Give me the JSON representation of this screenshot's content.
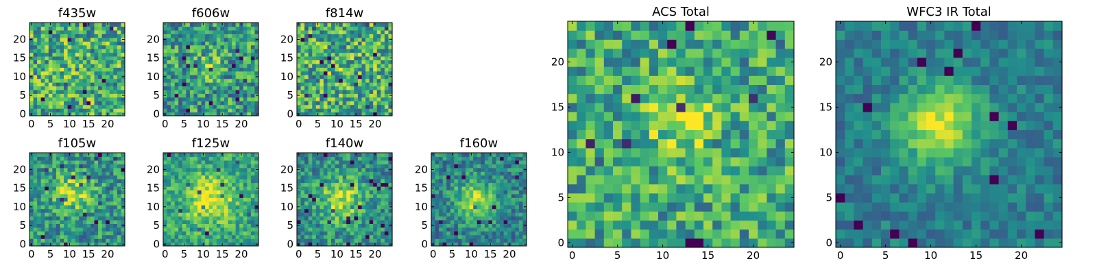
{
  "figure": {
    "colormap": [
      "#440154",
      "#3b528b",
      "#21918c",
      "#5ec962",
      "#fde725"
    ]
  },
  "chart_data": [
    {
      "type": "heatmap",
      "title": "f435w",
      "grid_size": 25,
      "xticks": [
        "0",
        "5",
        "10",
        "15",
        "20"
      ],
      "yticks": [
        "0",
        "5",
        "10",
        "15",
        "20"
      ],
      "seed": 11,
      "center": [
        10,
        13
      ],
      "peak": 0.05,
      "spread": 3.0,
      "noise": 0.55,
      "base": 0.62
    },
    {
      "type": "heatmap",
      "title": "f606w",
      "grid_size": 25,
      "xticks": [
        "0",
        "5",
        "10",
        "15",
        "20"
      ],
      "yticks": [
        "0",
        "5",
        "10",
        "15",
        "20"
      ],
      "seed": 23,
      "center": [
        11,
        13
      ],
      "peak": 0.25,
      "spread": 2.5,
      "noise": 0.5,
      "base": 0.55
    },
    {
      "type": "heatmap",
      "title": "f814w",
      "grid_size": 25,
      "xticks": [
        "0",
        "5",
        "10",
        "15",
        "20"
      ],
      "yticks": [
        "0",
        "5",
        "10",
        "15",
        "20"
      ],
      "seed": 37,
      "center": [
        12,
        12
      ],
      "peak": 0.05,
      "spread": 3.0,
      "noise": 0.55,
      "base": 0.62
    },
    {
      "type": "heatmap",
      "title": "f105w",
      "grid_size": 25,
      "xticks": [
        "0",
        "5",
        "10",
        "15",
        "20"
      ],
      "yticks": [
        "0",
        "5",
        "10",
        "15",
        "20"
      ],
      "seed": 41,
      "center": [
        11,
        14
      ],
      "peak": 0.35,
      "spread": 3.5,
      "noise": 0.42,
      "base": 0.52
    },
    {
      "type": "heatmap",
      "title": "f125w",
      "grid_size": 25,
      "xticks": [
        "0",
        "5",
        "10",
        "15",
        "20"
      ],
      "yticks": [
        "0",
        "5",
        "10",
        "15",
        "20"
      ],
      "seed": 53,
      "center": [
        12,
        12
      ],
      "peak": 0.4,
      "spread": 4.5,
      "noise": 0.35,
      "base": 0.58
    },
    {
      "type": "heatmap",
      "title": "f140w",
      "grid_size": 25,
      "xticks": [
        "0",
        "5",
        "10",
        "15",
        "20"
      ],
      "yticks": [
        "0",
        "5",
        "10",
        "15",
        "20"
      ],
      "seed": 67,
      "center": [
        11,
        12
      ],
      "peak": 0.4,
      "spread": 4.0,
      "noise": 0.38,
      "base": 0.5
    },
    {
      "type": "heatmap",
      "title": "f160w",
      "grid_size": 25,
      "xticks": [
        "0",
        "5",
        "10",
        "15",
        "20"
      ],
      "yticks": [
        "0",
        "5",
        "10",
        "15",
        "20"
      ],
      "seed": 79,
      "center": [
        11,
        12
      ],
      "peak": 0.45,
      "spread": 3.5,
      "noise": 0.35,
      "base": 0.45
    },
    {
      "type": "heatmap",
      "title": "ACS Total",
      "grid_size": 25,
      "xticks": [
        "0",
        "5",
        "10",
        "15",
        "20"
      ],
      "yticks": [
        "0",
        "5",
        "10",
        "15",
        "20"
      ],
      "seed": 97,
      "center": [
        12,
        13
      ],
      "peak": 0.25,
      "spread": 3.0,
      "noise": 0.45,
      "base": 0.6
    },
    {
      "type": "heatmap",
      "title": "WFC3 IR Total",
      "grid_size": 25,
      "xticks": [
        "0",
        "5",
        "10",
        "15",
        "20"
      ],
      "yticks": [
        "0",
        "5",
        "10",
        "15",
        "20"
      ],
      "seed": 113,
      "center": [
        11,
        13
      ],
      "peak": 0.55,
      "spread": 3.0,
      "noise": 0.22,
      "base": 0.42
    }
  ]
}
